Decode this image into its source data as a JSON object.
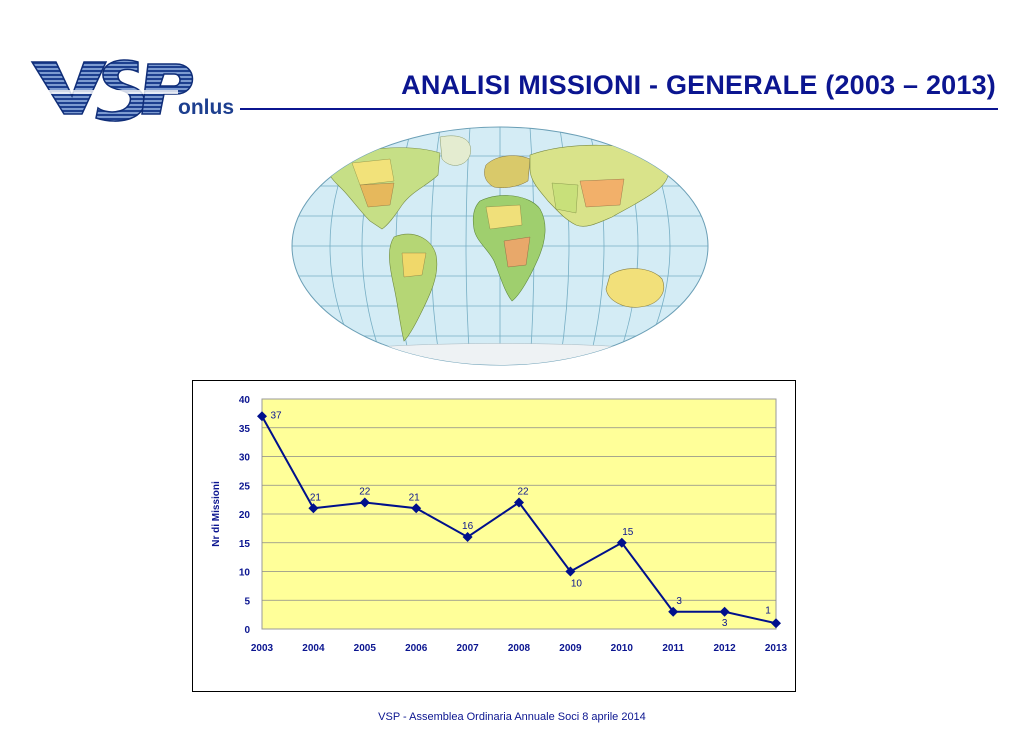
{
  "header": {
    "logo_text": "VSP",
    "logo_suffix": "onlus",
    "title": "ANALISI MISSIONI - GENERALE (2003 – 2013)"
  },
  "colors": {
    "title": "#0b1590",
    "plot_background": "#ffff99",
    "series_line": "#00108c",
    "ocean": "#d4ecf5",
    "land": "#c9e08a"
  },
  "map": {
    "icon": "world-map-icon"
  },
  "chart_data": {
    "type": "line",
    "categories": [
      "2003",
      "2004",
      "2005",
      "2006",
      "2007",
      "2008",
      "2009",
      "2010",
      "2011",
      "2012",
      "2013"
    ],
    "series": [
      {
        "values": [
          37,
          21,
          22,
          21,
          16,
          22,
          10,
          15,
          3,
          3,
          1
        ]
      }
    ],
    "data_labels": [
      "37",
      "21",
      "22",
      "21",
      "16",
      "22",
      "10",
      "15",
      "3",
      "3",
      "1"
    ],
    "ylabel": "Nr di Missioni",
    "xlabel": "",
    "ylim": [
      0,
      40
    ],
    "yticks": [
      "0",
      "5",
      "10",
      "15",
      "20",
      "25",
      "30",
      "35",
      "40"
    ],
    "grid": true,
    "marker": "diamond"
  },
  "footer": {
    "text": "VSP - Assemblea Ordinaria Annuale Soci 8 aprile 2014"
  }
}
